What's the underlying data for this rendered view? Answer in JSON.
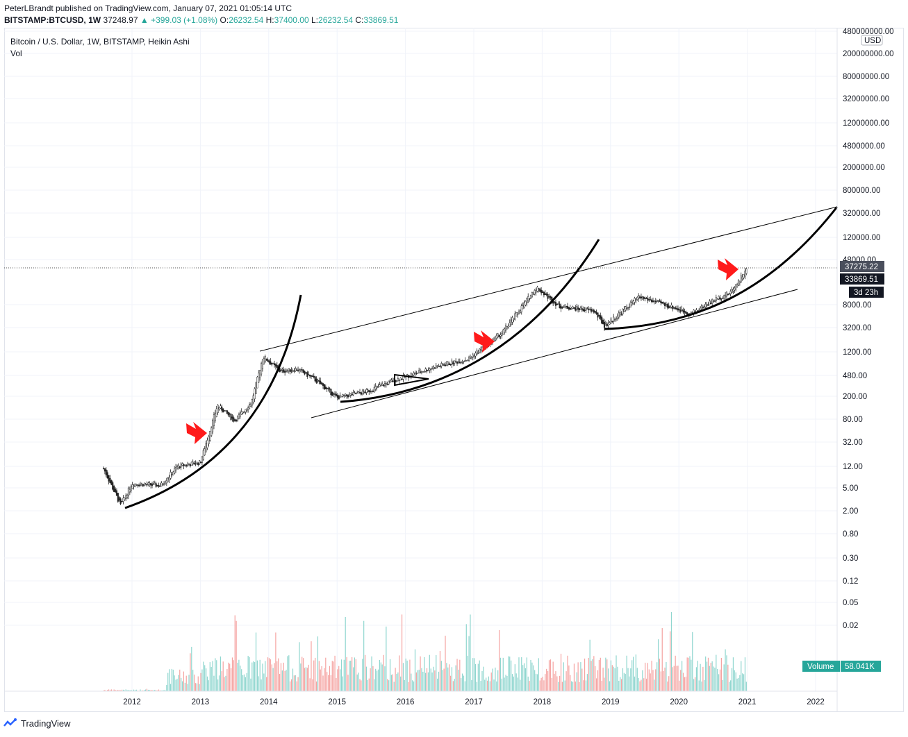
{
  "header": {
    "line1": "PeterLBrandt published on TradingView.com, January 07, 2021 01:05:14 UTC",
    "symbol": "BITSTAMP:BTCUSD, 1W",
    "last": "37248.97",
    "change": "+399.03 (+1.08%)",
    "o_label": "O:",
    "o_val": "26232.54",
    "h_label": "H:",
    "h_val": "37400.00",
    "l_label": "L:",
    "l_val": "26232.54",
    "c_label": "C:",
    "c_val": "33869.51"
  },
  "legend": {
    "title": "Bitcoin / U.S. Dollar, 1W, BITSTAMP, Heikin Ashi",
    "vol": "Vol"
  },
  "footer": {
    "brand": "TradingView"
  },
  "colors": {
    "up": "#26a69a",
    "down": "#ef5350",
    "vol_up": "#8fd6cf",
    "vol_down": "#f5a3a1",
    "arrow": "#ff1a1a",
    "price_label": "#4a4f5c",
    "dark_label": "#131722"
  },
  "chart_data": {
    "type": "candlestick",
    "title": "Bitcoin / U.S. Dollar, 1W, BITSTAMP, Heikin Ashi",
    "y_scale": "log",
    "currency": "USD",
    "x_tick_labels": [
      "2012",
      "2013",
      "2014",
      "2015",
      "2016",
      "2017",
      "2018",
      "2019",
      "2020",
      "2021",
      "2022"
    ],
    "y_tick_labels": [
      "480000000.00",
      "200000000.00",
      "80000000.00",
      "32000000.00",
      "12000000.00",
      "4800000.00",
      "2000000.00",
      "800000.00",
      "320000.00",
      "120000.00",
      "48000.00",
      "8000.00",
      "3200.00",
      "1200.00",
      "480.00",
      "200.00",
      "80.00",
      "32.00",
      "12.00",
      "5.00",
      "2.00",
      "0.80",
      "0.30",
      "0.12",
      "0.05",
      "0.02"
    ],
    "y_ticks": [
      480000000,
      200000000,
      80000000,
      32000000,
      12000000,
      4800000,
      2000000,
      800000,
      320000,
      120000,
      48000,
      8000,
      3200,
      1200,
      480,
      200,
      80,
      32,
      12,
      5,
      2,
      0.8,
      0.3,
      0.12,
      0.05,
      0.02
    ],
    "price_labels": {
      "current": "37275.22",
      "close": "33869.51",
      "countdown": "3d 23h",
      "usd": "USD"
    },
    "volume_label": {
      "name": "Volume",
      "value": "58.041K"
    },
    "weekly_price_anchors": [
      {
        "date": "2011-08",
        "price": 11
      },
      {
        "date": "2011-11",
        "price": 2.5
      },
      {
        "date": "2012-01",
        "price": 6
      },
      {
        "date": "2012-06",
        "price": 5.5
      },
      {
        "date": "2012-09",
        "price": 12
      },
      {
        "date": "2013-01",
        "price": 14
      },
      {
        "date": "2013-04",
        "price": 140
      },
      {
        "date": "2013-07",
        "price": 75
      },
      {
        "date": "2013-10",
        "price": 160
      },
      {
        "date": "2013-12",
        "price": 1000
      },
      {
        "date": "2014-03",
        "price": 550
      },
      {
        "date": "2014-06",
        "price": 600
      },
      {
        "date": "2014-09",
        "price": 400
      },
      {
        "date": "2015-01",
        "price": 190
      },
      {
        "date": "2015-06",
        "price": 240
      },
      {
        "date": "2015-11",
        "price": 380
      },
      {
        "date": "2016-06",
        "price": 650
      },
      {
        "date": "2016-12",
        "price": 900
      },
      {
        "date": "2017-06",
        "price": 2600
      },
      {
        "date": "2017-12",
        "price": 16000
      },
      {
        "date": "2018-04",
        "price": 7500
      },
      {
        "date": "2018-10",
        "price": 6300
      },
      {
        "date": "2018-12",
        "price": 3400
      },
      {
        "date": "2019-06",
        "price": 11000
      },
      {
        "date": "2019-12",
        "price": 7200
      },
      {
        "date": "2020-03",
        "price": 5500
      },
      {
        "date": "2020-07",
        "price": 9500
      },
      {
        "date": "2020-10",
        "price": 13000
      },
      {
        "date": "2021-01",
        "price": 33869.51
      }
    ]
  }
}
